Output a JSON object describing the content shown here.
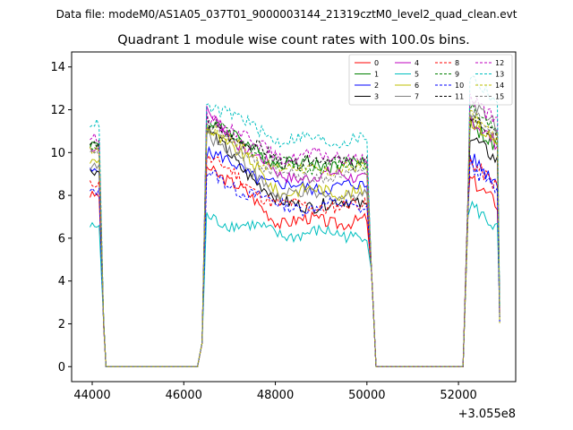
{
  "suptitle": "Data file: modeM0/AS1A05_037T01_9000003144_21319cztM0_level2_quad_clean.evt",
  "chart_data": {
    "type": "line",
    "title": "Quadrant 1 module wise count rates with 100.0s bins.",
    "xlabel": "",
    "ylabel": "",
    "x_offset_label": "+3.055e8",
    "xlim": [
      43550,
      53250
    ],
    "ylim": [
      -0.7,
      14.7
    ],
    "x_ticks": [
      44000,
      46000,
      48000,
      50000,
      52000
    ],
    "x_tick_labels": [
      "44000",
      "46000",
      "48000",
      "50000",
      "52000"
    ],
    "y_ticks": [
      0,
      2,
      4,
      6,
      8,
      10,
      12,
      14
    ],
    "y_tick_labels": [
      "0",
      "2",
      "4",
      "6",
      "8",
      "10",
      "12",
      "14"
    ],
    "grid": false,
    "legend_position": "top-right",
    "legend_columns": 4,
    "segments": [
      {
        "start": 44000,
        "end": 44200,
        "note": "active"
      },
      {
        "start": 44300,
        "end": 46300,
        "note": "zero"
      },
      {
        "start": 46500,
        "end": 50000,
        "note": "active"
      },
      {
        "start": 50200,
        "end": 52100,
        "note": "zero"
      },
      {
        "start": 52300,
        "end": 52900,
        "note": "active"
      }
    ],
    "series": [
      {
        "name": "0",
        "color": "#ff0000",
        "dash": false,
        "level": 6.8,
        "peak": 9.5,
        "end": 8.8
      },
      {
        "name": "1",
        "color": "#008000",
        "dash": false,
        "level": 9.5,
        "peak": 11.5,
        "end": 11.4
      },
      {
        "name": "2",
        "color": "#0000ff",
        "dash": false,
        "level": 8.4,
        "peak": 10.0,
        "end": 9.8
      },
      {
        "name": "3",
        "color": "#000000",
        "dash": false,
        "level": 7.6,
        "peak": 11.0,
        "end": 10.8
      },
      {
        "name": "4",
        "color": "#bf00bf",
        "dash": false,
        "level": 8.9,
        "peak": 11.8,
        "end": 11.6
      },
      {
        "name": "5",
        "color": "#00bfbf",
        "dash": false,
        "level": 6.2,
        "peak": 7.0,
        "end": 7.6
      },
      {
        "name": "6",
        "color": "#bfbf00",
        "dash": false,
        "level": 8.2,
        "peak": 11.3,
        "end": 11.6
      },
      {
        "name": "7",
        "color": "#808080",
        "dash": false,
        "level": 8.0,
        "peak": 11.0,
        "end": 12.5
      },
      {
        "name": "8",
        "color": "#ff0000",
        "dash": true,
        "level": 7.5,
        "peak": 9.8,
        "end": 9.6
      },
      {
        "name": "9",
        "color": "#008000",
        "dash": true,
        "level": 9.4,
        "peak": 11.4,
        "end": 12.2
      },
      {
        "name": "10",
        "color": "#0000ff",
        "dash": true,
        "level": 7.5,
        "peak": 9.0,
        "end": 9.4
      },
      {
        "name": "11",
        "color": "#000000",
        "dash": true,
        "level": 9.6,
        "peak": 11.4,
        "end": 11.8
      },
      {
        "name": "12",
        "color": "#bf00bf",
        "dash": true,
        "level": 9.8,
        "peak": 11.8,
        "end": 12.6
      },
      {
        "name": "13",
        "color": "#00bfbf",
        "dash": true,
        "level": 10.6,
        "peak": 12.3,
        "end": 13.6
      },
      {
        "name": "14",
        "color": "#bfbf00",
        "dash": true,
        "level": 9.2,
        "peak": 11.2,
        "end": 11.8
      },
      {
        "name": "15",
        "color": "#808080",
        "dash": true,
        "level": 8.9,
        "peak": 11.2,
        "end": 12.0
      }
    ]
  }
}
